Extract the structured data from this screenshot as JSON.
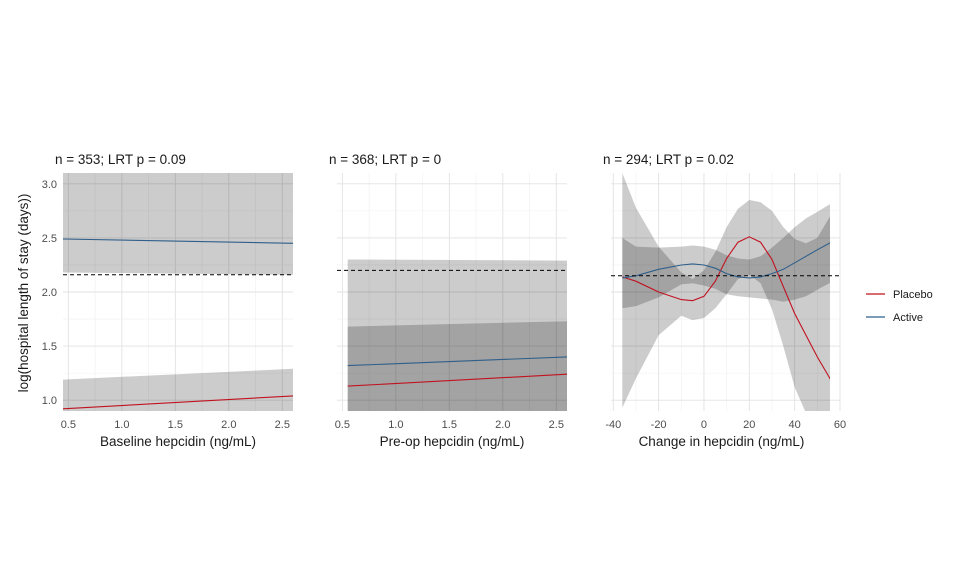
{
  "figure": {
    "ylabel": "log(hospital length of stay (days))",
    "legend": {
      "placement": "right",
      "entries": [
        {
          "name": "Placebo",
          "color": "#c1121f"
        },
        {
          "name": "Active",
          "color": "#2f5f8a"
        }
      ]
    },
    "colors": {
      "placebo": "#c1121f",
      "active": "#2f5f8a",
      "ribbon": "#000000",
      "reference_line": "#000000"
    }
  },
  "chart_data": [
    {
      "type": "line",
      "title": "n = 353; LRT p = 0.09",
      "xlabel": "Baseline hepcidin (ng/mL)",
      "ylabel": "log(hospital length of stay (days))",
      "xlim": [
        0.45,
        2.6
      ],
      "ylim": [
        0.9,
        3.1
      ],
      "x_ticks": [
        "0.5",
        "1.0",
        "1.5",
        "2.0",
        "2.5"
      ],
      "y_ticks": [
        "1.0",
        "1.5",
        "2.0",
        "2.5",
        "3.0"
      ],
      "reference_y": 2.16,
      "series": [
        {
          "name": "Placebo",
          "x": [
            0.45,
            2.6
          ],
          "y": [
            0.92,
            1.04
          ],
          "lower": [
            0.45,
            0.55
          ],
          "upper": [
            1.19,
            1.29
          ]
        },
        {
          "name": "Active",
          "x": [
            0.45,
            2.6
          ],
          "y": [
            2.49,
            2.45
          ],
          "lower": [
            2.18,
            2.16
          ],
          "upper": [
            3.15,
            3.15
          ]
        }
      ]
    },
    {
      "type": "line",
      "title": "n = 368; LRT p = 0",
      "xlabel": "Pre-op hepcidin (ng/mL)",
      "ylabel": "",
      "xlim": [
        0.45,
        2.6
      ],
      "ylim": [
        0.9,
        3.1
      ],
      "x_ticks": [
        "0.5",
        "1.0",
        "1.5",
        "2.0",
        "2.5"
      ],
      "y_ticks": [],
      "reference_y": 2.2,
      "series": [
        {
          "name": "Placebo",
          "x": [
            0.55,
            2.6
          ],
          "y": [
            1.13,
            1.24
          ],
          "lower": [
            0.6,
            0.7
          ],
          "upper": [
            1.68,
            1.73
          ]
        },
        {
          "name": "Active",
          "x": [
            0.55,
            2.6
          ],
          "y": [
            1.32,
            1.4
          ],
          "lower": [
            0.8,
            0.85
          ],
          "upper": [
            2.3,
            2.29
          ]
        }
      ]
    },
    {
      "type": "line",
      "title": "n = 294; LRT p = 0.02",
      "xlabel": "Change in hepcidin (ng/mL)",
      "ylabel": "",
      "xlim": [
        -41,
        60
      ],
      "ylim": [
        0.9,
        3.1
      ],
      "x_ticks": [
        "-40",
        "-20",
        "0",
        "20",
        "40",
        "60"
      ],
      "y_ticks": [],
      "reference_y": 2.15,
      "series": [
        {
          "name": "Placebo",
          "x": [
            -36,
            -30,
            -20,
            -10,
            -5,
            0,
            5,
            10,
            15,
            20,
            25,
            30,
            35,
            40,
            45,
            50,
            57
          ],
          "y": [
            2.14,
            2.1,
            2.0,
            1.93,
            1.92,
            1.96,
            2.1,
            2.31,
            2.46,
            2.51,
            2.46,
            2.3,
            2.05,
            1.8,
            1.6,
            1.4,
            1.15
          ],
          "lower": [
            0.93,
            1.2,
            1.6,
            1.78,
            1.74,
            1.76,
            1.85,
            1.98,
            2.12,
            2.16,
            2.08,
            1.84,
            1.5,
            1.12,
            0.88,
            0.8,
            0.8
          ],
          "upper": [
            3.1,
            2.78,
            2.42,
            2.18,
            2.12,
            2.2,
            2.37,
            2.6,
            2.77,
            2.85,
            2.83,
            2.75,
            2.6,
            2.49,
            2.45,
            2.5,
            2.75
          ]
        },
        {
          "name": "Active",
          "x": [
            -36,
            -30,
            -20,
            -10,
            -5,
            0,
            5,
            10,
            15,
            20,
            25,
            30,
            35,
            40,
            45,
            50,
            57
          ],
          "y": [
            2.13,
            2.15,
            2.21,
            2.25,
            2.26,
            2.25,
            2.22,
            2.17,
            2.14,
            2.13,
            2.14,
            2.17,
            2.21,
            2.27,
            2.33,
            2.39,
            2.47
          ],
          "lower": [
            1.85,
            1.87,
            1.95,
            2.07,
            2.08,
            2.06,
            2.03,
            1.98,
            1.96,
            1.95,
            1.94,
            1.93,
            1.91,
            1.93,
            1.96,
            2.02,
            2.1
          ],
          "upper": [
            2.5,
            2.42,
            2.41,
            2.42,
            2.43,
            2.42,
            2.39,
            2.34,
            2.31,
            2.3,
            2.33,
            2.41,
            2.5,
            2.6,
            2.68,
            2.74,
            2.83
          ]
        }
      ]
    }
  ]
}
